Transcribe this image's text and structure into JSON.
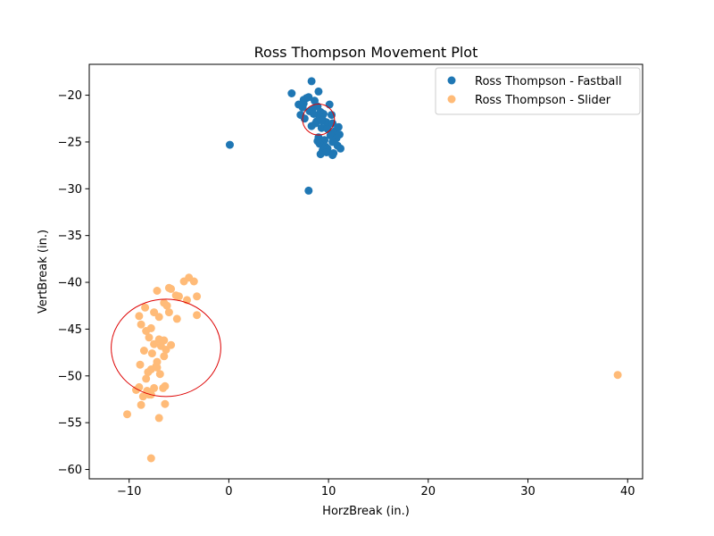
{
  "chart_data": {
    "type": "scatter",
    "title": "Ross Thompson Movement Plot",
    "xlabel": "HorzBreak (in.)",
    "ylabel": "VertBreak (in.)",
    "xlim": [
      -14,
      41.5
    ],
    "ylim": [
      -61,
      -16.7
    ],
    "xticks": [
      -10,
      0,
      10,
      20,
      30,
      40
    ],
    "yticks": [
      -20,
      -25,
      -30,
      -35,
      -40,
      -45,
      -50,
      -55,
      -60
    ],
    "grid": false,
    "legend_position": "top-right",
    "series": [
      {
        "name": "Ross Thompson - Fastball",
        "color": "#1f77b4",
        "x": [
          6.3,
          7.0,
          7.5,
          7.8,
          8.0,
          8.3,
          8.6,
          8.9,
          9.2,
          9.5,
          10.1,
          7.2,
          7.6,
          8.4,
          8.8,
          9.1,
          9.4,
          9.8,
          10.3,
          10.7,
          7.4,
          8.1,
          8.7,
          9.3,
          9.9,
          10.5,
          11.0,
          7.5,
          8.5,
          9.0,
          9.6,
          10.2,
          10.8,
          11.1,
          9.1,
          9.7,
          10.4,
          10.9,
          8.9,
          9.4,
          9.9,
          10.5,
          11.2,
          9.2,
          9.8,
          10.4,
          9.3,
          9.9,
          10.4,
          0.1,
          8.0,
          8.3,
          9.0
        ],
        "y": [
          -19.8,
          -21.0,
          -20.5,
          -20.3,
          -20.2,
          -18.5,
          -20.6,
          -21.2,
          -21.8,
          -22.0,
          -21.0,
          -22.1,
          -22.5,
          -21.5,
          -22.8,
          -22.3,
          -22.6,
          -22.9,
          -22.1,
          -23.8,
          -21.3,
          -21.7,
          -23.0,
          -23.5,
          -23.2,
          -24.0,
          -23.4,
          -20.9,
          -22.0,
          -24.5,
          -24.8,
          -24.3,
          -24.6,
          -24.2,
          -25.2,
          -25.5,
          -25.0,
          -25.4,
          -24.9,
          -25.9,
          -25.7,
          -26.2,
          -25.7,
          -26.3,
          -26.1,
          -26.4,
          -22.7,
          -23.6,
          -23.0,
          -25.3,
          -30.2,
          -23.3,
          -19.6
        ]
      },
      {
        "name": "Ross Thompson - Slider",
        "color": "#ffbb78",
        "x": [
          -4.0,
          -3.5,
          -4.5,
          -5.3,
          -6.0,
          -6.5,
          -5.8,
          -5.0,
          -4.2,
          -3.2,
          -6.2,
          -7.2,
          -8.4,
          -9.0,
          -7.5,
          -7.0,
          -6.0,
          -5.2,
          -3.2,
          -8.8,
          -8.3,
          -7.8,
          -7.0,
          -6.5,
          -5.8,
          -7.5,
          -8.0,
          -6.8,
          -6.3,
          -7.7,
          -8.5,
          -7.2,
          -6.5,
          -7.3,
          -8.1,
          -6.9,
          -7.8,
          -8.9,
          -7.2,
          -6.4,
          -8.3,
          -9.0,
          -8.2,
          -7.5,
          -8.0,
          -6.6,
          -9.3,
          -8.6,
          -7.8,
          -6.4,
          -8.8,
          -10.2,
          -7.0,
          -7.8,
          39.0
        ],
        "y": [
          -39.5,
          -39.9,
          -39.9,
          -41.4,
          -40.6,
          -42.2,
          -40.7,
          -41.5,
          -41.9,
          -41.5,
          -42.5,
          -40.9,
          -42.7,
          -43.6,
          -43.2,
          -43.7,
          -43.2,
          -43.9,
          -43.5,
          -44.5,
          -45.2,
          -44.9,
          -46.1,
          -46.2,
          -46.7,
          -46.6,
          -45.9,
          -46.8,
          -47.2,
          -47.6,
          -47.3,
          -48.5,
          -47.9,
          -49.0,
          -49.6,
          -49.8,
          -49.3,
          -48.8,
          -49.1,
          -51.1,
          -50.3,
          -51.2,
          -51.6,
          -51.3,
          -52.0,
          -51.3,
          -51.5,
          -52.2,
          -52.0,
          -53.0,
          -53.1,
          -54.1,
          -54.5,
          -58.8,
          -49.9
        ]
      }
    ],
    "annotations": [
      {
        "shape": "ellipse",
        "color": "#dd0000",
        "center": [
          9.0,
          -22.6
        ],
        "radius_x": 1.6,
        "radius_y": 1.65
      },
      {
        "shape": "ellipse",
        "color": "#dd0000",
        "center": [
          -6.3,
          -47.0
        ],
        "radius_x": 5.5,
        "radius_y": 5.2
      }
    ]
  }
}
